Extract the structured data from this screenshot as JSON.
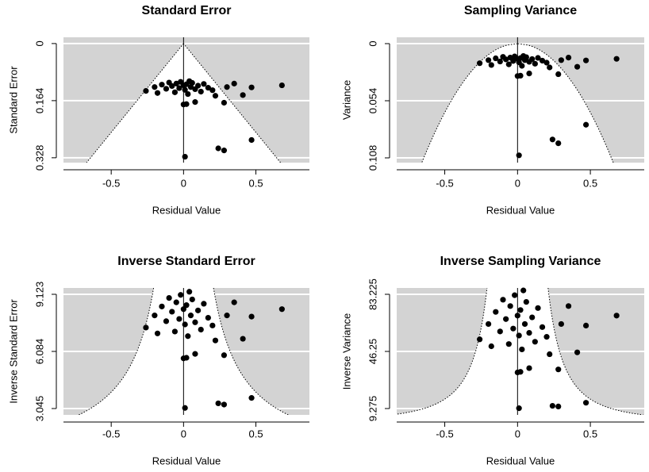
{
  "chart_data": [
    {
      "type": "scatter",
      "title": "Standard Error",
      "xlabel": "Residual Value",
      "ylabel": "Standard Error",
      "x": [
        -0.26,
        -0.2,
        -0.15,
        -0.12,
        -0.1,
        -0.08,
        -0.06,
        -0.05,
        -0.03,
        -0.02,
        0,
        0.01,
        0.02,
        0.03,
        0.05,
        0.06,
        0.08,
        0.1,
        0.12,
        0.14,
        0.17,
        0.2,
        -0.18,
        0.04,
        0.22,
        0.3,
        0.35,
        0.41,
        0.47,
        0.68,
        0.28,
        0.08,
        0,
        0.02,
        0.47,
        0.24,
        0.28,
        0.01
      ],
      "y": [
        0.136,
        0.125,
        0.118,
        0.13,
        0.112,
        0.122,
        0.14,
        0.115,
        0.128,
        0.11,
        0.12,
        0.133,
        0.117,
        0.145,
        0.125,
        0.113,
        0.131,
        0.121,
        0.138,
        0.116,
        0.127,
        0.134,
        0.142,
        0.108,
        0.15,
        0.125,
        0.115,
        0.148,
        0.126,
        0.12,
        0.17,
        0.168,
        0.175,
        0.174,
        0.277,
        0.301,
        0.307,
        0.325
      ],
      "xlim": [
        -0.83,
        0.87
      ],
      "ylim": [
        0.342,
        -0.018
      ],
      "xticks": [
        -0.5,
        0,
        0.5
      ],
      "yticks": [
        0,
        0.164,
        0.328
      ],
      "color": "#000000",
      "background": "#d3d3d3",
      "grid": true
    },
    {
      "type": "scatter",
      "title": "Sampling Variance",
      "xlabel": "Residual Value",
      "ylabel": "Variance",
      "x": [
        -0.26,
        -0.2,
        -0.15,
        -0.12,
        -0.1,
        -0.08,
        -0.06,
        -0.05,
        -0.03,
        -0.02,
        0,
        0.01,
        0.02,
        0.03,
        0.05,
        0.06,
        0.08,
        0.1,
        0.12,
        0.14,
        0.17,
        0.2,
        -0.18,
        0.04,
        0.22,
        0.3,
        0.35,
        0.41,
        0.47,
        0.68,
        0.28,
        0.08,
        0,
        0.02,
        0.47,
        0.24,
        0.28,
        0.01
      ],
      "y": [
        0.0185,
        0.0156,
        0.0139,
        0.0169,
        0.0125,
        0.0149,
        0.0196,
        0.0132,
        0.0164,
        0.0121,
        0.0144,
        0.0177,
        0.0137,
        0.021,
        0.0156,
        0.0128,
        0.0172,
        0.0146,
        0.019,
        0.0135,
        0.0161,
        0.018,
        0.0202,
        0.0117,
        0.0225,
        0.0156,
        0.0132,
        0.0219,
        0.0159,
        0.0144,
        0.0289,
        0.0282,
        0.0306,
        0.0303,
        0.0767,
        0.0906,
        0.0942,
        0.1056
      ],
      "xlim": [
        -0.83,
        0.87
      ],
      "ylim": [
        0.1125,
        -0.006
      ],
      "xticks": [
        -0.5,
        0,
        0.5
      ],
      "yticks": [
        0,
        0.054,
        0.108
      ],
      "color": "#000000",
      "background": "#d3d3d3",
      "grid": true
    },
    {
      "type": "scatter",
      "title": "Inverse Standard Error",
      "xlabel": "Residual Value",
      "ylabel": "Inverse Standard Error",
      "x": [
        -0.26,
        -0.2,
        -0.15,
        -0.12,
        -0.1,
        -0.08,
        -0.06,
        -0.05,
        -0.03,
        -0.02,
        0,
        0.01,
        0.02,
        0.03,
        0.05,
        0.06,
        0.08,
        0.1,
        0.12,
        0.14,
        0.17,
        0.2,
        -0.18,
        0.04,
        0.22,
        0.3,
        0.35,
        0.41,
        0.47,
        0.68,
        0.28,
        0.08,
        0,
        0.02,
        0.47,
        0.24,
        0.28,
        0.01
      ],
      "y": [
        7.353,
        8,
        8.475,
        7.692,
        8.929,
        8.197,
        7.143,
        8.696,
        7.813,
        9.091,
        8.333,
        7.519,
        8.547,
        6.897,
        8,
        8.85,
        7.634,
        8.264,
        7.246,
        8.621,
        7.874,
        7.463,
        7.042,
        9.259,
        6.667,
        8,
        8.696,
        6.757,
        7.937,
        8.333,
        5.882,
        5.952,
        5.714,
        5.747,
        3.61,
        3.322,
        3.257,
        3.077
      ],
      "xlim": [
        -0.83,
        0.87
      ],
      "ylim": [
        2.707,
        9.461
      ],
      "xticks": [
        -0.5,
        0,
        0.5
      ],
      "yticks": [
        3.045,
        6.084,
        9.123
      ],
      "color": "#000000",
      "background": "#d3d3d3",
      "grid": true
    },
    {
      "type": "scatter",
      "title": "Inverse Sampling Variance",
      "xlabel": "Residual Value",
      "ylabel": "Inverse Variance",
      "x": [
        -0.26,
        -0.2,
        -0.15,
        -0.12,
        -0.1,
        -0.08,
        -0.06,
        -0.05,
        -0.03,
        -0.02,
        0,
        0.01,
        0.02,
        0.03,
        0.05,
        0.06,
        0.08,
        0.1,
        0.12,
        0.14,
        0.17,
        0.2,
        -0.18,
        0.04,
        0.22,
        0.3,
        0.35,
        0.41,
        0.47,
        0.68,
        0.28,
        0.08,
        0,
        0.02,
        0.47,
        0.24,
        0.28,
        0.01
      ],
      "y": [
        54.07,
        64,
        71.82,
        59.17,
        79.72,
        67.19,
        51.02,
        75.61,
        61.04,
        82.64,
        69.44,
        56.53,
        73.05,
        47.56,
        64,
        78.31,
        58.27,
        68.3,
        52.51,
        74.32,
        62,
        55.69,
        49.59,
        85.73,
        44.44,
        64,
        75.61,
        45.65,
        62.99,
        69.44,
        34.6,
        35.43,
        32.65,
        33.03,
        13.03,
        11.04,
        10.61,
        9.47
      ],
      "xlim": [
        -0.83,
        0.87
      ],
      "ylim": [
        5.17,
        87.33
      ],
      "xticks": [
        -0.5,
        0,
        0.5
      ],
      "yticks": [
        9.275,
        46.25,
        83.225
      ],
      "color": "#000000",
      "background": "#d3d3d3",
      "grid": true
    }
  ]
}
